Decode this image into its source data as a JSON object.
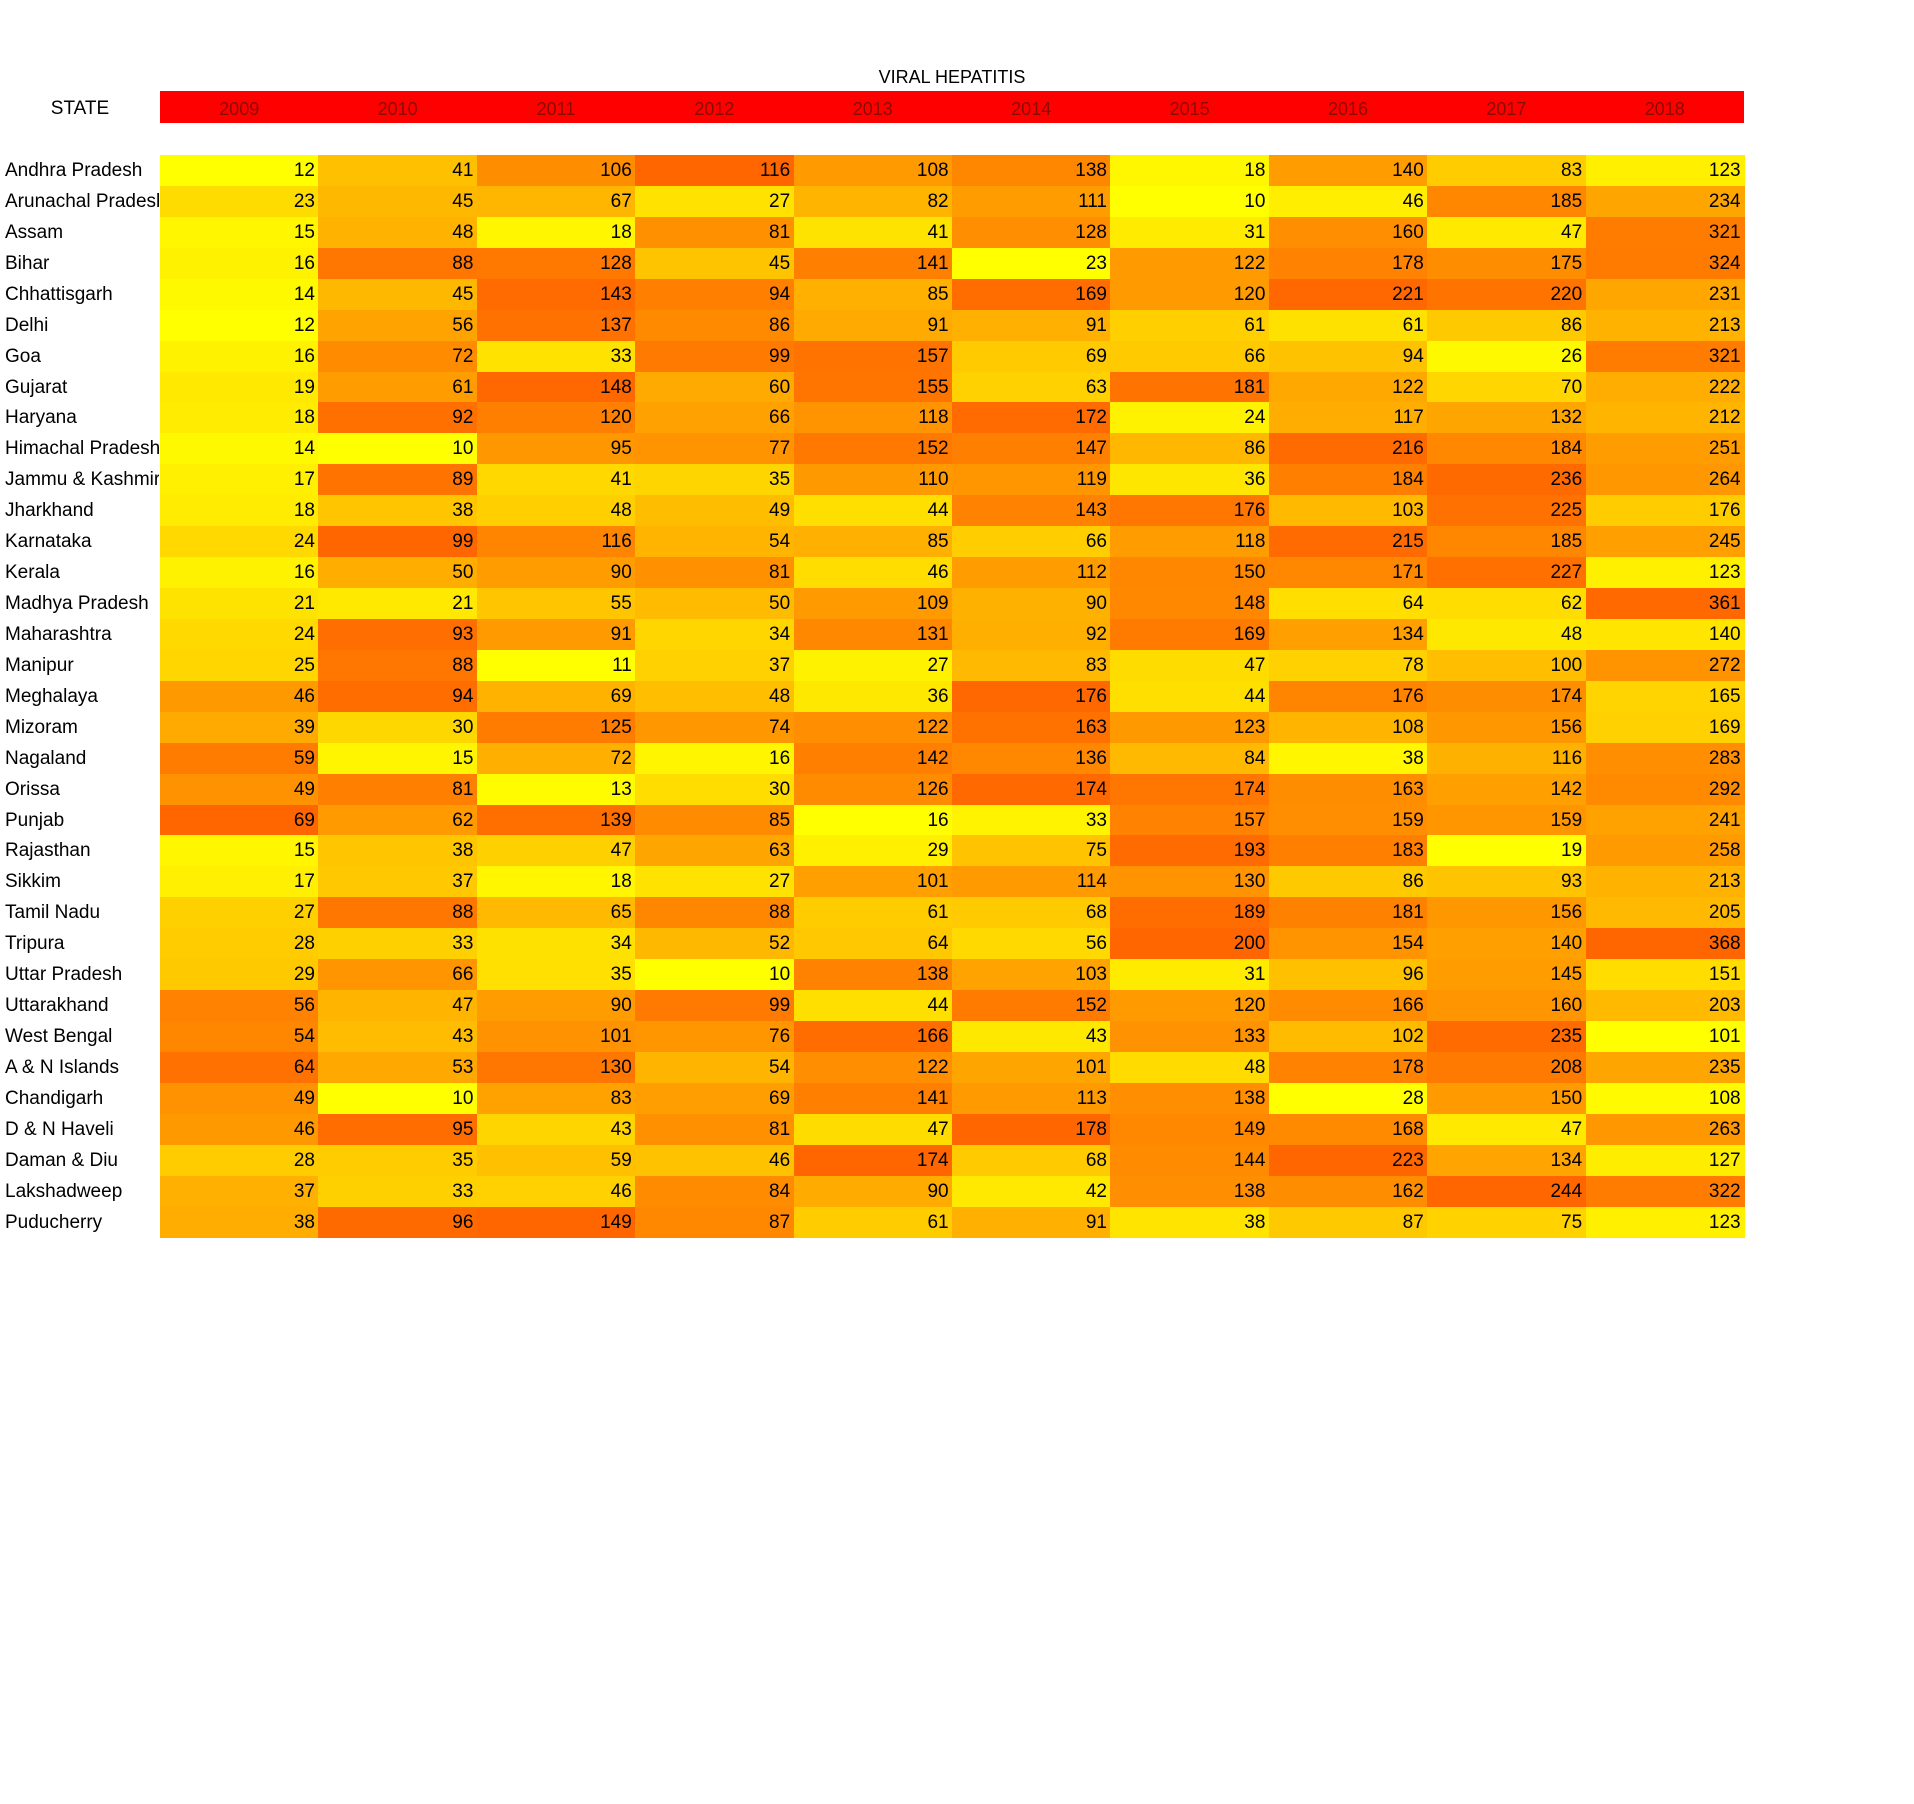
{
  "chart_data": {
    "type": "heatmap",
    "title": "VIRAL HEPATITIS",
    "row_header": "STATE",
    "columns": [
      "2009",
      "2010",
      "2011",
      "2012",
      "2013",
      "2014",
      "2015",
      "2016",
      "2017",
      "2018"
    ],
    "rows": [
      {
        "label": "Andhra Pradesh",
        "values": [
          12,
          41,
          106,
          116,
          108,
          138,
          18,
          140,
          83,
          123
        ]
      },
      {
        "label": "Arunachal Pradesh",
        "values": [
          23,
          45,
          67,
          27,
          82,
          111,
          10,
          46,
          185,
          234
        ]
      },
      {
        "label": "Assam",
        "values": [
          15,
          48,
          18,
          81,
          41,
          128,
          31,
          160,
          47,
          321
        ]
      },
      {
        "label": "Bihar",
        "values": [
          16,
          88,
          128,
          45,
          141,
          23,
          122,
          178,
          175,
          324
        ]
      },
      {
        "label": "Chhattisgarh",
        "values": [
          14,
          45,
          143,
          94,
          85,
          169,
          120,
          221,
          220,
          231
        ]
      },
      {
        "label": "Delhi",
        "values": [
          12,
          56,
          137,
          86,
          91,
          91,
          61,
          61,
          86,
          213
        ]
      },
      {
        "label": "Goa",
        "values": [
          16,
          72,
          33,
          99,
          157,
          69,
          66,
          94,
          26,
          321
        ]
      },
      {
        "label": "Gujarat",
        "values": [
          19,
          61,
          148,
          60,
          155,
          63,
          181,
          122,
          70,
          222
        ]
      },
      {
        "label": "Haryana",
        "values": [
          18,
          92,
          120,
          66,
          118,
          172,
          24,
          117,
          132,
          212
        ]
      },
      {
        "label": "Himachal Pradesh",
        "values": [
          14,
          10,
          95,
          77,
          152,
          147,
          86,
          216,
          184,
          251
        ]
      },
      {
        "label": "Jammu & Kashmir",
        "values": [
          17,
          89,
          41,
          35,
          110,
          119,
          36,
          184,
          236,
          264
        ]
      },
      {
        "label": "Jharkhand",
        "values": [
          18,
          38,
          48,
          49,
          44,
          143,
          176,
          103,
          225,
          176
        ]
      },
      {
        "label": "Karnataka",
        "values": [
          24,
          99,
          116,
          54,
          85,
          66,
          118,
          215,
          185,
          245
        ]
      },
      {
        "label": "Kerala",
        "values": [
          16,
          50,
          90,
          81,
          46,
          112,
          150,
          171,
          227,
          123
        ]
      },
      {
        "label": "Madhya Pradesh",
        "values": [
          21,
          21,
          55,
          50,
          109,
          90,
          148,
          64,
          62,
          361
        ]
      },
      {
        "label": "Maharashtra",
        "values": [
          24,
          93,
          91,
          34,
          131,
          92,
          169,
          134,
          48,
          140
        ]
      },
      {
        "label": "Manipur",
        "values": [
          25,
          88,
          11,
          37,
          27,
          83,
          47,
          78,
          100,
          272
        ]
      },
      {
        "label": "Meghalaya",
        "values": [
          46,
          94,
          69,
          48,
          36,
          176,
          44,
          176,
          174,
          165
        ]
      },
      {
        "label": "Mizoram",
        "values": [
          39,
          30,
          125,
          74,
          122,
          163,
          123,
          108,
          156,
          169
        ]
      },
      {
        "label": "Nagaland",
        "values": [
          59,
          15,
          72,
          16,
          142,
          136,
          84,
          38,
          116,
          283
        ]
      },
      {
        "label": "Orissa",
        "values": [
          49,
          81,
          13,
          30,
          126,
          174,
          174,
          163,
          142,
          292
        ]
      },
      {
        "label": "Punjab",
        "values": [
          69,
          62,
          139,
          85,
          16,
          33,
          157,
          159,
          159,
          241
        ]
      },
      {
        "label": "Rajasthan",
        "values": [
          15,
          38,
          47,
          63,
          29,
          75,
          193,
          183,
          19,
          258
        ]
      },
      {
        "label": "Sikkim",
        "values": [
          17,
          37,
          18,
          27,
          101,
          114,
          130,
          86,
          93,
          213
        ]
      },
      {
        "label": "Tamil Nadu",
        "values": [
          27,
          88,
          65,
          88,
          61,
          68,
          189,
          181,
          156,
          205
        ]
      },
      {
        "label": "Tripura",
        "values": [
          28,
          33,
          34,
          52,
          64,
          56,
          200,
          154,
          140,
          368
        ]
      },
      {
        "label": "Uttar Pradesh",
        "values": [
          29,
          66,
          35,
          10,
          138,
          103,
          31,
          96,
          145,
          151
        ]
      },
      {
        "label": "Uttarakhand",
        "values": [
          56,
          47,
          90,
          99,
          44,
          152,
          120,
          166,
          160,
          203
        ]
      },
      {
        "label": "West Bengal",
        "values": [
          54,
          43,
          101,
          76,
          166,
          43,
          133,
          102,
          235,
          101
        ]
      },
      {
        "label": "A & N Islands",
        "values": [
          64,
          53,
          130,
          54,
          122,
          101,
          48,
          178,
          208,
          235
        ]
      },
      {
        "label": "Chandigarh",
        "values": [
          49,
          10,
          83,
          69,
          141,
          113,
          138,
          28,
          150,
          108
        ]
      },
      {
        "label": "D & N Haveli",
        "values": [
          46,
          95,
          43,
          81,
          47,
          178,
          149,
          168,
          47,
          263
        ]
      },
      {
        "label": "Daman & Diu",
        "values": [
          28,
          35,
          59,
          46,
          174,
          68,
          144,
          223,
          134,
          127
        ]
      },
      {
        "label": "Lakshadweep",
        "values": [
          37,
          33,
          46,
          84,
          90,
          42,
          138,
          162,
          244,
          322
        ]
      },
      {
        "label": "Puducherry",
        "values": [
          38,
          96,
          149,
          87,
          61,
          91,
          38,
          87,
          75,
          123
        ]
      }
    ],
    "color_scale": {
      "low": "#ffff00",
      "mid": "#ffa500",
      "high": "#ff6600"
    },
    "header_bar_color": "#ff0000"
  }
}
